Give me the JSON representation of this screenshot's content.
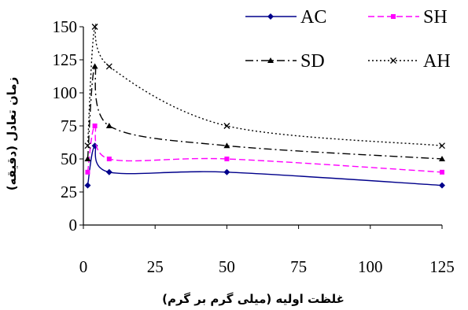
{
  "chart_data": {
    "type": "line",
    "title": "",
    "xlabel": "غلظت اولیه (میلی گرم بر گرم)",
    "ylabel": "زمان تعادل (دقیقه)",
    "xlim": [
      0,
      125
    ],
    "ylim": [
      0,
      150
    ],
    "x_ticks": [
      "0",
      "25",
      "50",
      "75",
      "100",
      "125"
    ],
    "y_ticks": [
      "0",
      "25",
      "50",
      "75",
      "100",
      "125",
      "150"
    ],
    "grid": false,
    "legend_position": "top-right",
    "series": [
      {
        "name": "AC",
        "color": "#00008b",
        "dash": "solid",
        "marker": "diamond",
        "x": [
          1.5,
          4,
          9,
          50,
          125
        ],
        "y": [
          30,
          60,
          40,
          40,
          30
        ]
      },
      {
        "name": "SH",
        "color": "#ff00ff",
        "dash": "dash",
        "marker": "square",
        "x": [
          1.5,
          4,
          9,
          50,
          125
        ],
        "y": [
          40,
          75,
          50,
          50,
          40
        ]
      },
      {
        "name": "SD",
        "color": "#000000",
        "dash": "dashdot",
        "marker": "triangle",
        "x": [
          1.5,
          4,
          9,
          50,
          125
        ],
        "y": [
          50,
          120,
          75,
          60,
          50
        ]
      },
      {
        "name": "AH",
        "color": "#000000",
        "dash": "dot",
        "marker": "x",
        "x": [
          1.5,
          4,
          9,
          50,
          125
        ],
        "y": [
          60,
          150,
          120,
          75,
          60
        ]
      }
    ]
  }
}
